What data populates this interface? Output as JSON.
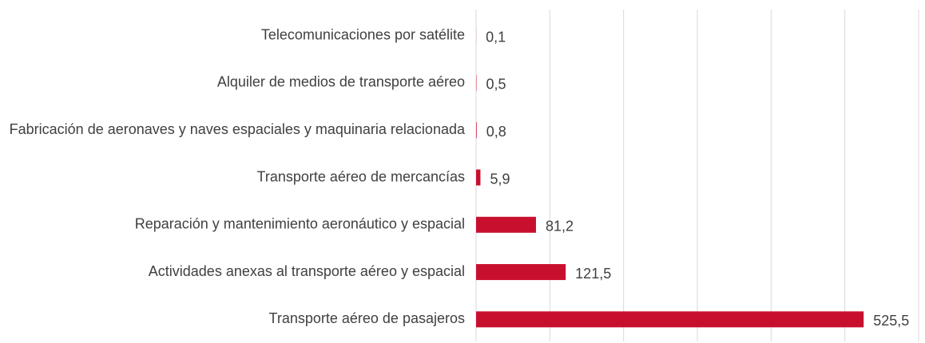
{
  "chart_data": {
    "type": "hbar",
    "categories": [
      "Telecomunicaciones por satélite",
      "Alquiler de medios de transporte aéreo",
      "Fabricación de aeronaves y naves espaciales y maquinaria relacionada",
      "Transporte aéreo de mercancías",
      "Reparación y mantenimiento aeronáutico y espacial",
      "Actividades anexas al transporte aéreo y espacial",
      "Transporte aéreo de pasajeros"
    ],
    "values": [
      0.1,
      0.5,
      0.8,
      5.9,
      81.2,
      121.5,
      525.5
    ],
    "value_labels": [
      "0,1",
      "0,5",
      "0,8",
      "5,9",
      "81,2",
      "121,5",
      "525,5"
    ],
    "color": "#c8102e",
    "xlim": [
      0,
      600
    ],
    "xticks": [
      0,
      100,
      200,
      300,
      400,
      500,
      600
    ],
    "grid": true
  }
}
